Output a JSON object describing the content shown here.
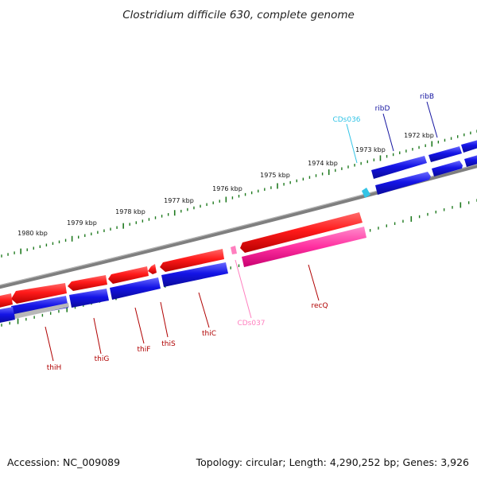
{
  "title": "Clostridium difficile 630, complete genome",
  "accession": "Accession: NC_009089",
  "summary": "Topology: circular; Length: 4,290,252 bp; Genes: 3,926",
  "colors": {
    "backbone": "#7f7f7f",
    "scale_ticks": "#1f7a1f",
    "forward_cds": "#ff1a1a",
    "reverse_cds": "#1414d6",
    "rna": "#ff3fa4",
    "misc_feature": "#33c4e6",
    "pseudo": "#b8b8b8"
  },
  "scale": {
    "unit": "kbp",
    "labels": [
      "1980 kbp",
      "1979 kbp",
      "1978 kbp",
      "1977 kbp",
      "1976 kbp",
      "1975 kbp",
      "1974 kbp",
      "1973 kbp",
      "1972 kbp"
    ]
  },
  "genes": [
    {
      "name": "ribB",
      "strand": "reverse",
      "color": "#1414a0"
    },
    {
      "name": "ribD",
      "strand": "reverse",
      "color": "#1414a0"
    },
    {
      "name": "CDs036",
      "strand": "misc",
      "color": "#33c4e6"
    },
    {
      "name": "CDs037",
      "strand": "misc",
      "color": "#ff7fbf"
    },
    {
      "name": "recQ",
      "strand": "forward",
      "color": "#b00000"
    },
    {
      "name": "thiC",
      "strand": "forward",
      "color": "#b00000"
    },
    {
      "name": "thiS",
      "strand": "forward",
      "color": "#b00000"
    },
    {
      "name": "thiF",
      "strand": "forward",
      "color": "#b00000"
    },
    {
      "name": "thiG",
      "strand": "forward",
      "color": "#b00000"
    },
    {
      "name": "thiH",
      "strand": "forward",
      "color": "#b00000"
    }
  ]
}
